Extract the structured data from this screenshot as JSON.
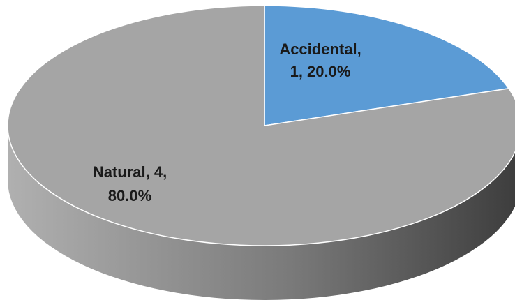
{
  "chart_data": {
    "type": "pie",
    "three_d": true,
    "slices": [
      {
        "name": "Accidental",
        "value": 1,
        "percent": "20.0%",
        "label_lines": [
          "Accidental,",
          "1, 20.0%"
        ],
        "color": "#5b9bd5"
      },
      {
        "name": "Natural",
        "value": 4,
        "percent": "80.0%",
        "label_lines": [
          "Natural, 4,",
          "80.0%"
        ],
        "color": "#a5a5a5"
      }
    ],
    "colors": {
      "side_dark": "#3c3c3c",
      "side_light": "#b0b0b0",
      "slice_border": "#ffffff"
    }
  }
}
